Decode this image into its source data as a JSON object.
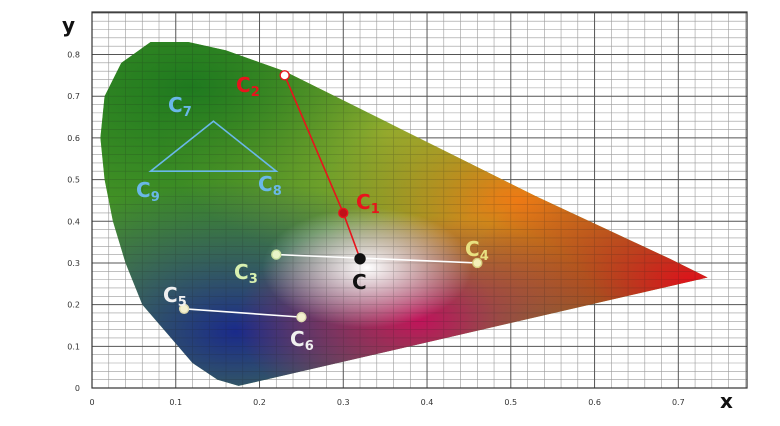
{
  "axes": {
    "x_label": "x",
    "y_label": "y",
    "x_ticks": [
      "0",
      "0.1",
      "0.2",
      "0.3",
      "0.4",
      "0.5",
      "0.6",
      "0.7"
    ],
    "y_ticks": [
      "0",
      "0.1",
      "0.2",
      "0.3",
      "0.4",
      "0.5",
      "0.6",
      "0.7",
      "0.8"
    ]
  },
  "points": {
    "C": {
      "label": "C",
      "sub": "",
      "x": 0.32,
      "y": 0.31,
      "color": "#111111"
    },
    "C1": {
      "label": "C",
      "sub": "1",
      "x": 0.3,
      "y": 0.42,
      "color": "#e8141c"
    },
    "C2": {
      "label": "C",
      "sub": "2",
      "x": 0.23,
      "y": 0.75,
      "color": "#e8141c"
    },
    "C3": {
      "label": "C",
      "sub": "3",
      "x": 0.22,
      "y": 0.32,
      "color": "#d8f0b0"
    },
    "C4": {
      "label": "C",
      "sub": "4",
      "x": 0.46,
      "y": 0.3,
      "color": "#e8e080"
    },
    "C5": {
      "label": "C",
      "sub": "5",
      "x": 0.11,
      "y": 0.19,
      "color": "#f0f0f0"
    },
    "C6": {
      "label": "C",
      "sub": "6",
      "x": 0.25,
      "y": 0.17,
      "color": "#f0f0f0"
    },
    "C7": {
      "label": "C",
      "sub": "7",
      "x": 0.145,
      "y": 0.64,
      "color": "#6ab8e8"
    },
    "C8": {
      "label": "C",
      "sub": "8",
      "x": 0.22,
      "y": 0.52,
      "color": "#6ab8e8"
    },
    "C9": {
      "label": "C",
      "sub": "9",
      "x": 0.07,
      "y": 0.52,
      "color": "#6ab8e8"
    }
  },
  "colors": {
    "red_line": "#e8141c",
    "white_line": "#ffffff",
    "triangle": "#6ab8e8"
  }
}
